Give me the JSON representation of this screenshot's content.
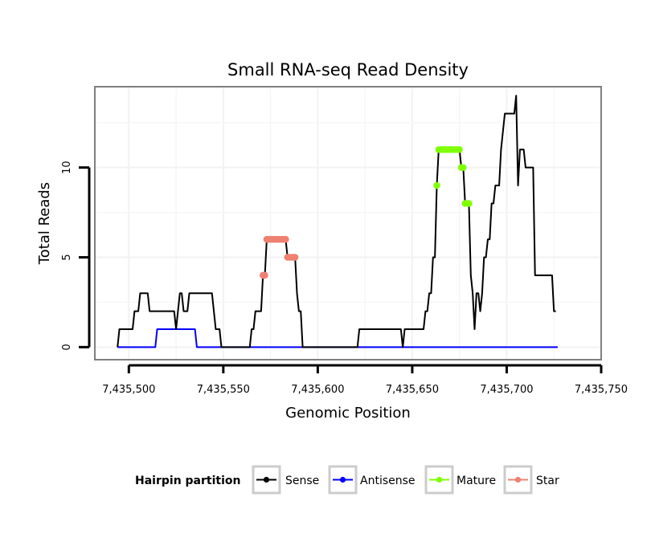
{
  "chart_data": {
    "type": "line",
    "title": "Small RNA-seq Read Density",
    "xlabel": "Genomic Position",
    "ylabel": "Total Reads",
    "xlim": [
      7435482,
      7435750
    ],
    "ylim": [
      -0.7,
      14.5
    ],
    "x_ticks": [
      {
        "value": 7435500,
        "label": "7,435,500"
      },
      {
        "value": 7435550,
        "label": "7,435,550"
      },
      {
        "value": 7435600,
        "label": "7,435,600"
      },
      {
        "value": 7435650,
        "label": "7,435,650"
      },
      {
        "value": 7435700,
        "label": "7,435,700"
      },
      {
        "value": 7435750,
        "label": "7,435,750"
      }
    ],
    "y_ticks": [
      {
        "value": 0,
        "label": "0"
      },
      {
        "value": 5,
        "label": "5"
      },
      {
        "value": 10,
        "label": "10"
      }
    ],
    "grid": true,
    "legend": {
      "title": "Hairpin partition",
      "position": "bottom",
      "entries": [
        {
          "label": "Sense",
          "color": "#000000"
        },
        {
          "label": "Antisense",
          "color": "#0000ff"
        },
        {
          "label": "Mature",
          "color": "#7fff00"
        },
        {
          "label": "Star",
          "color": "#f08070"
        }
      ]
    },
    "series": [
      {
        "name": "Sense",
        "color": "#000000",
        "points": [
          [
            7435494,
            0
          ],
          [
            7435495,
            1
          ],
          [
            7435496,
            1
          ],
          [
            7435497,
            1
          ],
          [
            7435498,
            1
          ],
          [
            7435499,
            1
          ],
          [
            7435500,
            1
          ],
          [
            7435501,
            1
          ],
          [
            7435502,
            1
          ],
          [
            7435503,
            2
          ],
          [
            7435504,
            2
          ],
          [
            7435505,
            2
          ],
          [
            7435506,
            3
          ],
          [
            7435507,
            3
          ],
          [
            7435508,
            3
          ],
          [
            7435509,
            3
          ],
          [
            7435510,
            3
          ],
          [
            7435511,
            2
          ],
          [
            7435512,
            2
          ],
          [
            7435513,
            2
          ],
          [
            7435514,
            2
          ],
          [
            7435515,
            2
          ],
          [
            7435516,
            2
          ],
          [
            7435517,
            2
          ],
          [
            7435518,
            2
          ],
          [
            7435519,
            2
          ],
          [
            7435520,
            2
          ],
          [
            7435521,
            2
          ],
          [
            7435522,
            2
          ],
          [
            7435523,
            2
          ],
          [
            7435524,
            2
          ],
          [
            7435525,
            1
          ],
          [
            7435526,
            2
          ],
          [
            7435527,
            3
          ],
          [
            7435528,
            3
          ],
          [
            7435529,
            2
          ],
          [
            7435530,
            2
          ],
          [
            7435531,
            2
          ],
          [
            7435532,
            3
          ],
          [
            7435533,
            3
          ],
          [
            7435534,
            3
          ],
          [
            7435535,
            3
          ],
          [
            7435536,
            3
          ],
          [
            7435537,
            3
          ],
          [
            7435538,
            3
          ],
          [
            7435539,
            3
          ],
          [
            7435540,
            3
          ],
          [
            7435541,
            3
          ],
          [
            7435542,
            3
          ],
          [
            7435543,
            3
          ],
          [
            7435544,
            3
          ],
          [
            7435545,
            2
          ],
          [
            7435546,
            1
          ],
          [
            7435547,
            1
          ],
          [
            7435548,
            1
          ],
          [
            7435549,
            0
          ],
          [
            7435550,
            0
          ],
          [
            7435551,
            0
          ],
          [
            7435552,
            0
          ],
          [
            7435553,
            0
          ],
          [
            7435554,
            0
          ],
          [
            7435555,
            0
          ],
          [
            7435556,
            0
          ],
          [
            7435557,
            0
          ],
          [
            7435558,
            0
          ],
          [
            7435559,
            0
          ],
          [
            7435560,
            0
          ],
          [
            7435561,
            0
          ],
          [
            7435562,
            0
          ],
          [
            7435563,
            0
          ],
          [
            7435564,
            0
          ],
          [
            7435565,
            1
          ],
          [
            7435566,
            1
          ],
          [
            7435567,
            2
          ],
          [
            7435568,
            2
          ],
          [
            7435569,
            2
          ],
          [
            7435570,
            2
          ],
          [
            7435571,
            4
          ],
          [
            7435572,
            4
          ],
          [
            7435573,
            6
          ],
          [
            7435574,
            6
          ],
          [
            7435575,
            6
          ],
          [
            7435576,
            6
          ],
          [
            7435577,
            6
          ],
          [
            7435578,
            6
          ],
          [
            7435579,
            6
          ],
          [
            7435580,
            6
          ],
          [
            7435581,
            6
          ],
          [
            7435582,
            6
          ],
          [
            7435583,
            6
          ],
          [
            7435584,
            5
          ],
          [
            7435585,
            5
          ],
          [
            7435586,
            5
          ],
          [
            7435587,
            5
          ],
          [
            7435588,
            5
          ],
          [
            7435589,
            3
          ],
          [
            7435590,
            2
          ],
          [
            7435591,
            2
          ],
          [
            7435592,
            0
          ],
          [
            7435593,
            0
          ],
          [
            7435594,
            0
          ],
          [
            7435595,
            0
          ],
          [
            7435596,
            0
          ],
          [
            7435597,
            0
          ],
          [
            7435598,
            0
          ],
          [
            7435599,
            0
          ],
          [
            7435600,
            0
          ],
          [
            7435601,
            0
          ],
          [
            7435602,
            0
          ],
          [
            7435603,
            0
          ],
          [
            7435604,
            0
          ],
          [
            7435605,
            0
          ],
          [
            7435606,
            0
          ],
          [
            7435607,
            0
          ],
          [
            7435608,
            0
          ],
          [
            7435609,
            0
          ],
          [
            7435610,
            0
          ],
          [
            7435611,
            0
          ],
          [
            7435612,
            0
          ],
          [
            7435613,
            0
          ],
          [
            7435614,
            0
          ],
          [
            7435615,
            0
          ],
          [
            7435616,
            0
          ],
          [
            7435617,
            0
          ],
          [
            7435618,
            0
          ],
          [
            7435619,
            0
          ],
          [
            7435620,
            0
          ],
          [
            7435621,
            0
          ],
          [
            7435622,
            1
          ],
          [
            7435623,
            1
          ],
          [
            7435624,
            1
          ],
          [
            7435625,
            1
          ],
          [
            7435626,
            1
          ],
          [
            7435627,
            1
          ],
          [
            7435628,
            1
          ],
          [
            7435629,
            1
          ],
          [
            7435630,
            1
          ],
          [
            7435631,
            1
          ],
          [
            7435632,
            1
          ],
          [
            7435633,
            1
          ],
          [
            7435634,
            1
          ],
          [
            7435635,
            1
          ],
          [
            7435636,
            1
          ],
          [
            7435637,
            1
          ],
          [
            7435638,
            1
          ],
          [
            7435639,
            1
          ],
          [
            7435640,
            1
          ],
          [
            7435641,
            1
          ],
          [
            7435642,
            1
          ],
          [
            7435643,
            1
          ],
          [
            7435644,
            1
          ],
          [
            7435645,
            0
          ],
          [
            7435646,
            1
          ],
          [
            7435647,
            1
          ],
          [
            7435648,
            1
          ],
          [
            7435649,
            1
          ],
          [
            7435650,
            1
          ],
          [
            7435651,
            1
          ],
          [
            7435652,
            1
          ],
          [
            7435653,
            1
          ],
          [
            7435654,
            1
          ],
          [
            7435655,
            1
          ],
          [
            7435656,
            1
          ],
          [
            7435657,
            2
          ],
          [
            7435658,
            2
          ],
          [
            7435659,
            3
          ],
          [
            7435660,
            3
          ],
          [
            7435661,
            5
          ],
          [
            7435662,
            5
          ],
          [
            7435663,
            9
          ],
          [
            7435664,
            11
          ],
          [
            7435665,
            11
          ],
          [
            7435666,
            11
          ],
          [
            7435667,
            11
          ],
          [
            7435668,
            11
          ],
          [
            7435669,
            11
          ],
          [
            7435670,
            11
          ],
          [
            7435671,
            11
          ],
          [
            7435672,
            11
          ],
          [
            7435673,
            11
          ],
          [
            7435674,
            11
          ],
          [
            7435675,
            11
          ],
          [
            7435676,
            10
          ],
          [
            7435677,
            10
          ],
          [
            7435678,
            8
          ],
          [
            7435679,
            8
          ],
          [
            7435680,
            8
          ],
          [
            7435681,
            4
          ],
          [
            7435682,
            3
          ],
          [
            7435683,
            1
          ],
          [
            7435684,
            3
          ],
          [
            7435685,
            3
          ],
          [
            7435686,
            2
          ],
          [
            7435687,
            3
          ],
          [
            7435688,
            5
          ],
          [
            7435689,
            5
          ],
          [
            7435690,
            6
          ],
          [
            7435691,
            6
          ],
          [
            7435692,
            8
          ],
          [
            7435693,
            8
          ],
          [
            7435694,
            9
          ],
          [
            7435695,
            9
          ],
          [
            7435696,
            9
          ],
          [
            7435697,
            11
          ],
          [
            7435698,
            12
          ],
          [
            7435699,
            13
          ],
          [
            7435700,
            13
          ],
          [
            7435701,
            13
          ],
          [
            7435702,
            13
          ],
          [
            7435703,
            13
          ],
          [
            7435704,
            13
          ],
          [
            7435705,
            14
          ],
          [
            7435706,
            9
          ],
          [
            7435707,
            11
          ],
          [
            7435708,
            11
          ],
          [
            7435709,
            11
          ],
          [
            7435710,
            10
          ],
          [
            7435711,
            10
          ],
          [
            7435712,
            10
          ],
          [
            7435713,
            10
          ],
          [
            7435714,
            10
          ],
          [
            7435715,
            4
          ],
          [
            7435716,
            4
          ],
          [
            7435717,
            4
          ],
          [
            7435718,
            4
          ],
          [
            7435719,
            4
          ],
          [
            7435720,
            4
          ],
          [
            7435721,
            4
          ],
          [
            7435722,
            4
          ],
          [
            7435723,
            4
          ],
          [
            7435724,
            4
          ],
          [
            7435725,
            2
          ],
          [
            7435726,
            2
          ]
        ]
      },
      {
        "name": "Antisense",
        "color": "#0000ff",
        "points": [
          [
            7435494,
            0
          ],
          [
            7435514,
            0
          ],
          [
            7435515,
            1
          ],
          [
            7435535,
            1
          ],
          [
            7435536,
            0
          ],
          [
            7435645,
            0
          ],
          [
            7435646,
            0
          ],
          [
            7435727,
            0
          ]
        ]
      },
      {
        "name": "Mature",
        "color": "#7fff00",
        "points": [
          [
            7435663,
            9
          ],
          [
            7435664,
            11
          ],
          [
            7435665,
            11
          ],
          [
            7435666,
            11
          ],
          [
            7435667,
            11
          ],
          [
            7435668,
            11
          ],
          [
            7435669,
            11
          ],
          [
            7435670,
            11
          ],
          [
            7435671,
            11
          ],
          [
            7435672,
            11
          ],
          [
            7435673,
            11
          ],
          [
            7435674,
            11
          ],
          [
            7435675,
            11
          ],
          [
            7435676,
            10
          ],
          [
            7435677,
            10
          ],
          [
            7435678,
            8
          ],
          [
            7435679,
            8
          ],
          [
            7435680,
            8
          ]
        ]
      },
      {
        "name": "Star",
        "color": "#f08070",
        "points": [
          [
            7435571,
            4
          ],
          [
            7435572,
            4
          ],
          [
            7435573,
            6
          ],
          [
            7435574,
            6
          ],
          [
            7435575,
            6
          ],
          [
            7435576,
            6
          ],
          [
            7435577,
            6
          ],
          [
            7435578,
            6
          ],
          [
            7435579,
            6
          ],
          [
            7435580,
            6
          ],
          [
            7435581,
            6
          ],
          [
            7435582,
            6
          ],
          [
            7435583,
            6
          ],
          [
            7435584,
            5
          ],
          [
            7435585,
            5
          ],
          [
            7435586,
            5
          ],
          [
            7435587,
            5
          ],
          [
            7435588,
            5
          ]
        ]
      }
    ]
  }
}
